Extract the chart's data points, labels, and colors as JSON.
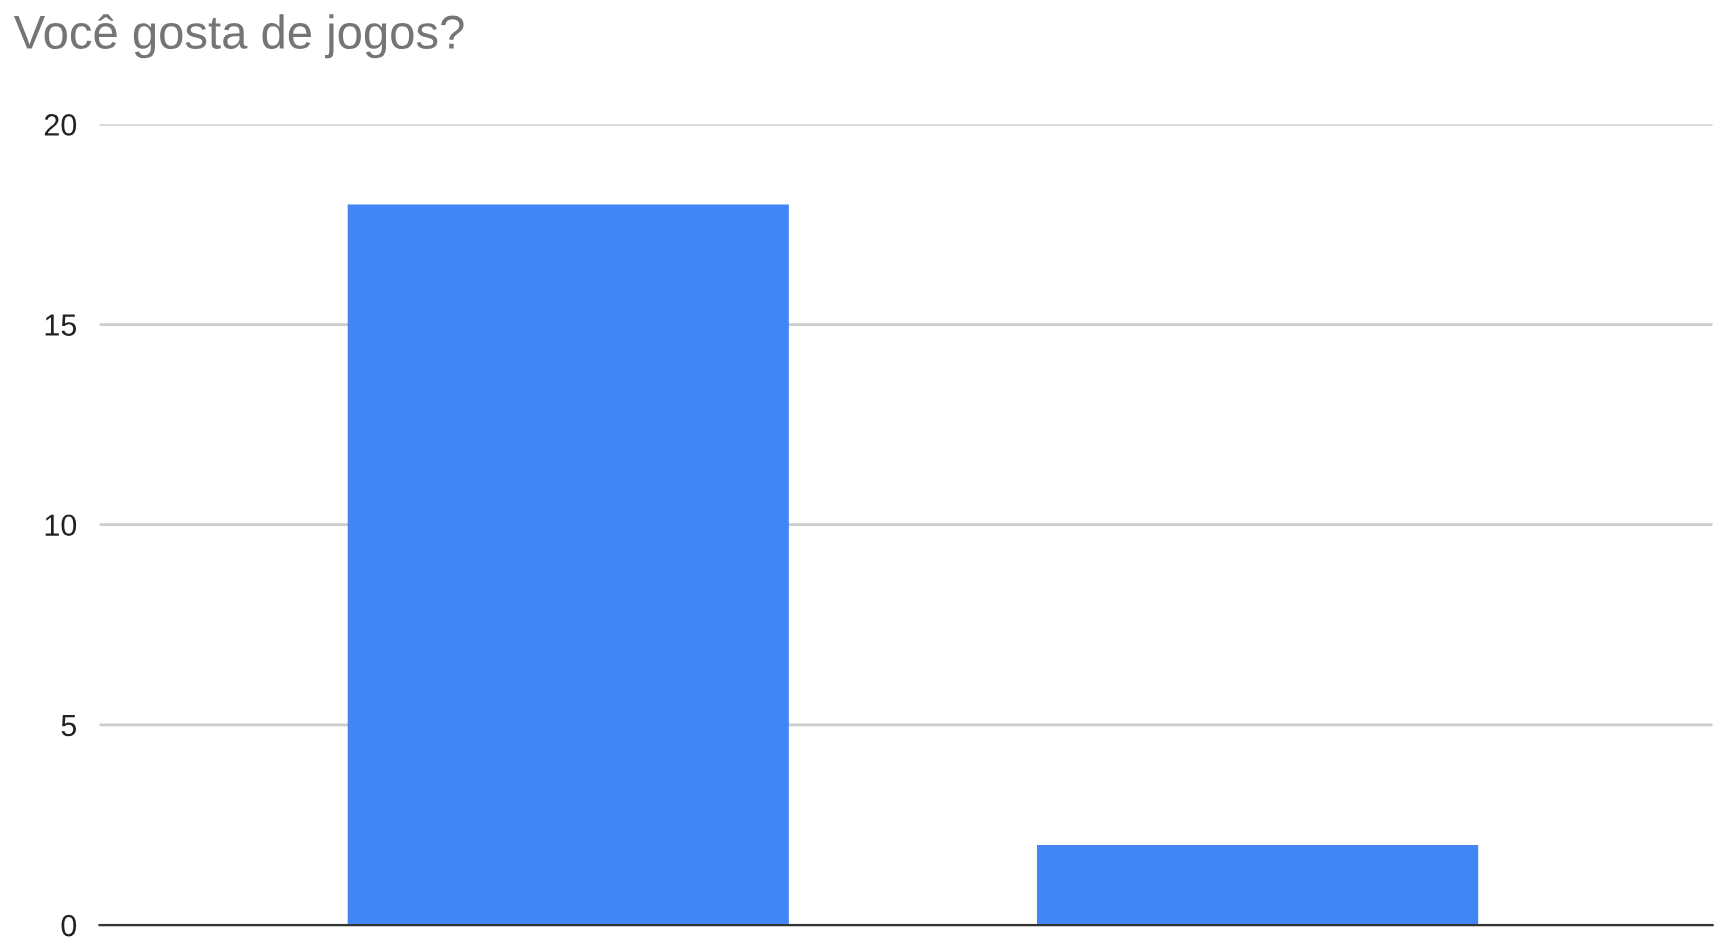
{
  "chart_data": {
    "type": "bar",
    "title": "Você gosta de jogos?",
    "categories": [
      null,
      null
    ],
    "values": [
      18,
      2
    ],
    "color": "#4285f4",
    "ylim": [
      0,
      20
    ],
    "yticks": [
      0,
      5,
      10,
      15,
      20
    ],
    "grid": "y",
    "legend": false,
    "tick_labels": "y"
  }
}
